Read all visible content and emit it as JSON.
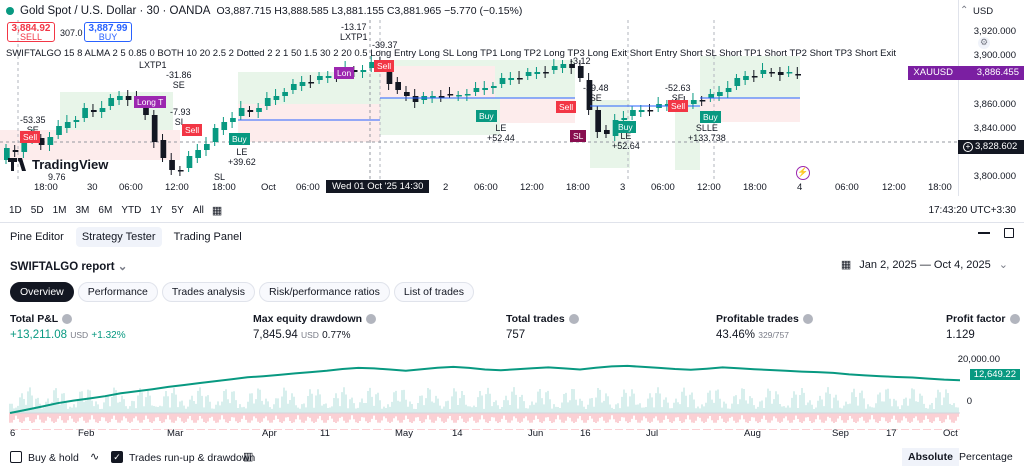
{
  "header": {
    "symbol": "Gold Spot / U.S. Dollar · 30 · OANDA",
    "ohlc": "O3,887.715 H3,888.585 L3,881.155 C3,881.965 −5.770 (−0.15%)",
    "currency": "USD"
  },
  "trade": {
    "sell_price": "3,884.92",
    "sell_sup": "0",
    "sell_label": "SELL",
    "spread": "307.0",
    "buy_price": "3,887.99",
    "buy_sup": "0",
    "buy_label": "BUY"
  },
  "indicator_line": "SWIFTALGO 15 8 ALMA 2 5 0.85 0 BOTH 10 20 2.5 2 Dotted 2 2 1 50 1.5 30 2 20 0.5 Long Entry Long SL Long TP1 Long TP2 Long TP3 Long Exit Short Entry Short SL Short TP1 Short TP2 Short TP3 Short Exit",
  "price_axis": {
    "ticks": [
      "3,920.000",
      "3,900.000",
      "3,880.000",
      "3,860.000",
      "3,840.000",
      "3,820.000",
      "3,800.000"
    ],
    "symbol_tag": "XAUUSD",
    "last_price": "3,886.455",
    "crosshair_price": "3,828.602",
    "colors": {
      "symbol_tag": "#7b1fa2",
      "crosshair": "#131722"
    }
  },
  "chart_labels": {
    "lxtp1_a": "LXTP1",
    "lxtp1_b": "-13.17",
    "lxtp1_c": "LXTP1",
    "se1_val": "-53.35",
    "se1": "SE",
    "sl_bottom": "SL",
    "sl_val": "9.76",
    "val_3137": "-31.86",
    "se2": "SE",
    "val_793": "-7.93",
    "sl2": "SL",
    "sl3": "SL",
    "le1": "LE",
    "le1_val": "+39.62",
    "val_3937": "-39.37",
    "val_312": "-3.12",
    "val_3948": "-39.48",
    "se3": "SE",
    "le2": "LE",
    "le2_val": "+52.44",
    "le3": "LE",
    "le3_val": "+52.64",
    "val_5263": "-52.63",
    "se4": "SE",
    "slle": "SLLE",
    "slle_val": "+133.738",
    "sl4": "SL",
    "buy": "Buy",
    "sell": "Sell",
    "long_tp": "Long T",
    "long": "Lon"
  },
  "logo": "TradingView",
  "time_axis": {
    "labels": [
      "18:00",
      "30",
      "06:00",
      "12:00",
      "18:00",
      "Oct",
      "06:00",
      "2",
      "06:00",
      "12:00",
      "18:00",
      "3",
      "06:00",
      "12:00",
      "18:00",
      "4",
      "06:00",
      "12:00",
      "18:00"
    ],
    "crosshair": "Wed 01 Oct '25   14:30"
  },
  "range_toolbar": {
    "ranges": [
      "1D",
      "5D",
      "1M",
      "3M",
      "6M",
      "YTD",
      "1Y",
      "5Y",
      "All"
    ],
    "clock": "17:43:20 UTC+3:30"
  },
  "panel_tabs": [
    "Pine Editor",
    "Strategy Tester",
    "Trading Panel"
  ],
  "report": {
    "title": "SWIFTALGO report",
    "date_range": "Jan 2, 2025 — Oct 4, 2025",
    "subtabs": [
      "Overview",
      "Performance",
      "Trades analysis",
      "Risk/performance ratios",
      "List of trades"
    ]
  },
  "metrics": {
    "total_pnl_label": "Total P&L",
    "total_pnl": "+13,211.08",
    "total_pnl_unit": "USD",
    "total_pnl_pct": "+1.32%",
    "drawdown_label": "Max equity drawdown",
    "drawdown": "7,845.94",
    "drawdown_unit": "USD",
    "drawdown_pct": "0.77%",
    "trades_label": "Total trades",
    "trades": "757",
    "profitable_label": "Profitable trades",
    "profitable": "43.46%",
    "profitable_frac": "329/757",
    "pf_label": "Profit factor",
    "pf": "1.129"
  },
  "equity_chart": {
    "y_labels": [
      "20,000.00",
      "0"
    ],
    "last_value": "12,649.22",
    "x_labels": [
      "6",
      "Feb",
      "Mar",
      "Apr",
      "11",
      "May",
      "14",
      "Jun",
      "16",
      "Jul",
      "Aug",
      "Sep",
      "17",
      "Oct"
    ]
  },
  "footer": {
    "buy_hold": "Buy & hold",
    "runup": "Trades run-up & drawdown",
    "absolute": "Absolute",
    "percentage": "Percentage"
  },
  "chart_data": {
    "type": "line",
    "series": [
      {
        "values": [
          0,
          1200,
          2500,
          3800,
          4800,
          5600,
          6500,
          7600,
          8400,
          9200,
          10100,
          10800,
          11600,
          12300,
          13000,
          13800,
          14200,
          14700,
          15300,
          15800,
          16300,
          17000,
          17400,
          17200,
          16800,
          16300,
          16900,
          17500,
          17800,
          17400,
          16800,
          16500,
          16900,
          17300,
          17600,
          17200,
          16800,
          17500,
          18000,
          18200,
          17800,
          17400,
          17000,
          16700,
          17100,
          17600,
          17300,
          16900,
          16600,
          16300,
          16000,
          15800,
          15500,
          14900,
          14500,
          14200,
          13900,
          13700,
          13300,
          12900,
          12649
        ]
      }
    ],
    "ylim": [
      -5000,
      22000
    ]
  }
}
